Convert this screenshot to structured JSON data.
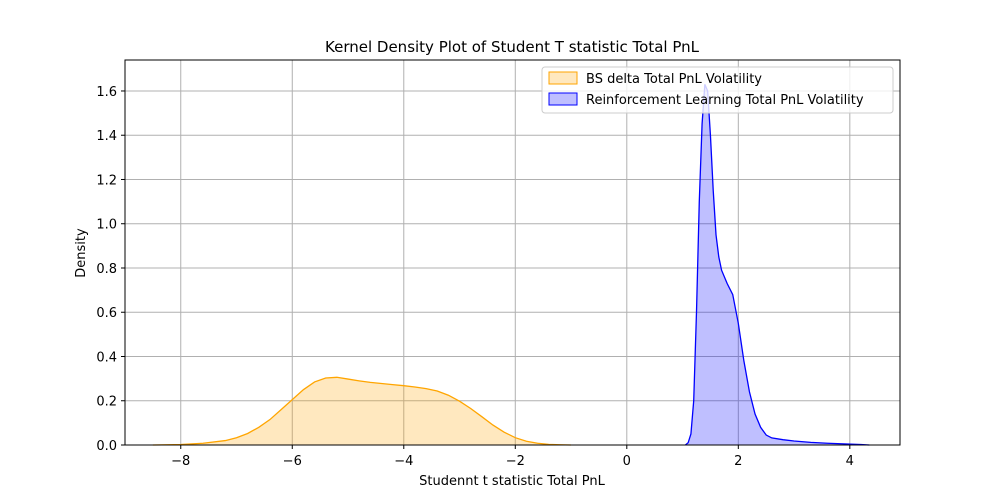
{
  "chart_data": {
    "type": "area",
    "title": "Kernel Density Plot of Student T statistic Total PnL",
    "xlabel": "Studennt t statistic Total PnL",
    "ylabel": "Density",
    "xlim": [
      -9.0,
      4.9
    ],
    "ylim": [
      0.0,
      1.74
    ],
    "xticks": [
      -8,
      -6,
      -4,
      -2,
      0,
      2,
      4
    ],
    "xtick_labels": [
      "−8",
      "−6",
      "−4",
      "−2",
      "0",
      "2",
      "4"
    ],
    "yticks": [
      0.0,
      0.2,
      0.4,
      0.6,
      0.8,
      1.0,
      1.2,
      1.4,
      1.6
    ],
    "ytick_labels": [
      "0.0",
      "0.2",
      "0.4",
      "0.6",
      "0.8",
      "1.0",
      "1.2",
      "1.4",
      "1.6"
    ],
    "grid": true,
    "legend_position": "top-right",
    "series": [
      {
        "name": "BS delta Total PnL Volatility",
        "line_color": "#ffa500",
        "fill_color": "#ffa500",
        "fill_opacity": 0.25,
        "x": [
          -8.5,
          -8.0,
          -7.6,
          -7.2,
          -7.0,
          -6.8,
          -6.6,
          -6.4,
          -6.2,
          -6.0,
          -5.8,
          -5.6,
          -5.4,
          -5.2,
          -5.0,
          -4.8,
          -4.6,
          -4.4,
          -4.2,
          -4.0,
          -3.8,
          -3.6,
          -3.4,
          -3.2,
          -3.0,
          -2.8,
          -2.6,
          -2.4,
          -2.2,
          -2.0,
          -1.8,
          -1.6,
          -1.4,
          -1.2,
          -1.0
        ],
        "y": [
          0.0,
          0.002,
          0.008,
          0.02,
          0.033,
          0.052,
          0.08,
          0.115,
          0.16,
          0.205,
          0.25,
          0.285,
          0.303,
          0.306,
          0.298,
          0.29,
          0.283,
          0.278,
          0.273,
          0.268,
          0.262,
          0.255,
          0.244,
          0.225,
          0.198,
          0.165,
          0.128,
          0.09,
          0.058,
          0.033,
          0.017,
          0.008,
          0.003,
          0.001,
          0.0
        ]
      },
      {
        "name": "Reinforcement Learning Total PnL Volatility",
        "line_color": "#0000ff",
        "fill_color": "#0000ff",
        "fill_opacity": 0.25,
        "x": [
          1.05,
          1.1,
          1.15,
          1.2,
          1.25,
          1.3,
          1.35,
          1.4,
          1.45,
          1.5,
          1.55,
          1.6,
          1.65,
          1.7,
          1.8,
          1.9,
          2.0,
          2.1,
          2.2,
          2.3,
          2.4,
          2.5,
          2.6,
          2.8,
          3.0,
          3.3,
          3.6,
          3.9,
          4.2,
          4.35
        ],
        "y": [
          0.0,
          0.01,
          0.05,
          0.2,
          0.6,
          1.1,
          1.45,
          1.63,
          1.6,
          1.4,
          1.15,
          0.95,
          0.85,
          0.79,
          0.73,
          0.68,
          0.55,
          0.38,
          0.24,
          0.14,
          0.08,
          0.045,
          0.032,
          0.024,
          0.018,
          0.012,
          0.008,
          0.005,
          0.002,
          0.0
        ]
      }
    ]
  }
}
